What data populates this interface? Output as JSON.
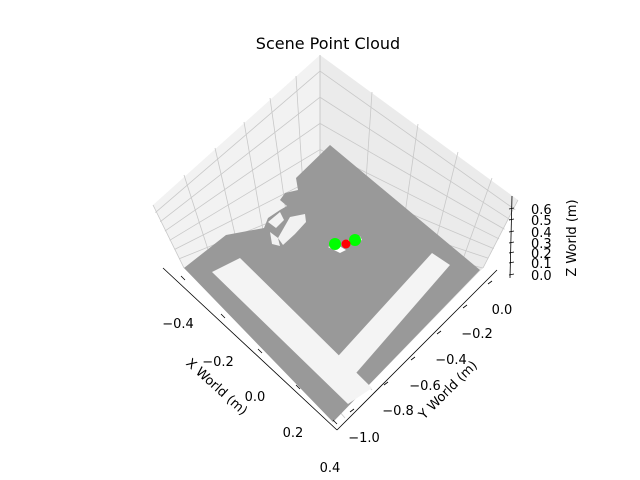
{
  "chart_data": {
    "type": "scatter",
    "projection": "3d",
    "title": "Scene Point Cloud",
    "xlabel": "X World (m)",
    "ylabel": "Y World (m)",
    "zlabel": "Z World (m)",
    "x_ticks": [
      "−0.4",
      "−0.2",
      "0.0",
      "0.2",
      "0.4"
    ],
    "y_ticks": [
      "0.0",
      "−0.2",
      "−0.4",
      "−0.6",
      "−0.8",
      "−1.0"
    ],
    "z_ticks": [
      "0.0",
      "0.1",
      "0.2",
      "0.3",
      "0.4",
      "0.5",
      "0.6"
    ],
    "xlim": [
      -0.5,
      0.5
    ],
    "ylim": [
      -1.05,
      0.05
    ],
    "zlim": [
      0.0,
      0.65
    ],
    "grid": true,
    "series": [
      {
        "color": "#999999",
        "description": "scene surface points"
      },
      {
        "color": "#00ff00",
        "points": [
          [
            -0.01,
            -0.47,
            0.02
          ],
          [
            0.06,
            -0.41,
            0.02
          ]
        ]
      },
      {
        "color": "#ff0000",
        "points": [
          [
            0.03,
            -0.44,
            0.02
          ]
        ]
      }
    ]
  }
}
